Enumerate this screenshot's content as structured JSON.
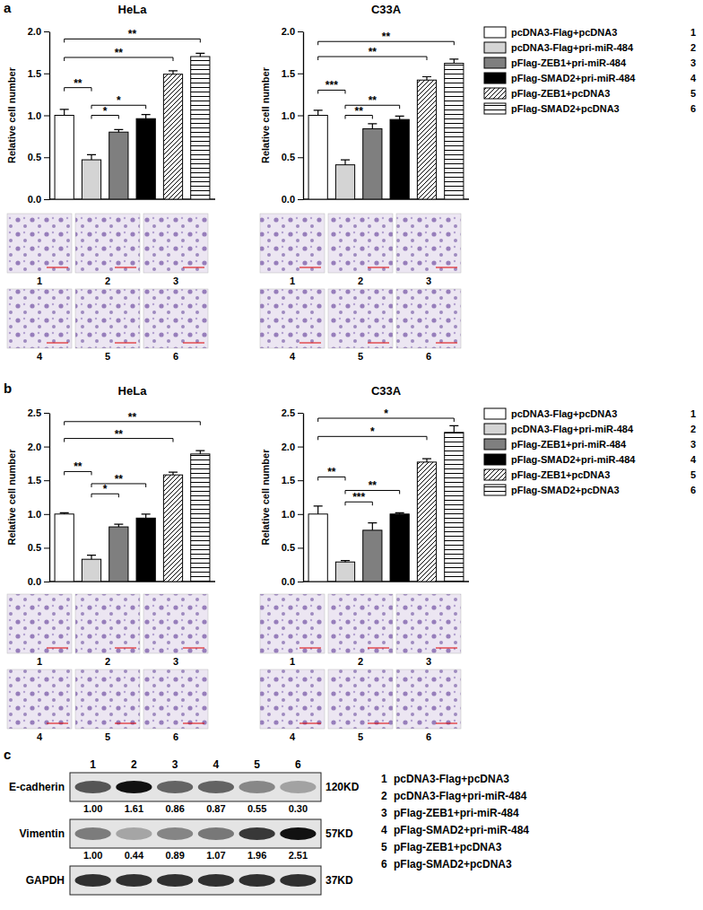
{
  "chart_data": [
    {
      "type": "bar",
      "title": "HeLa",
      "y_label": "Relative cell number",
      "categories": [
        null,
        null,
        null,
        null,
        null,
        null
      ],
      "values": [
        1.0,
        0.47,
        0.8,
        0.96,
        1.49,
        1.7
      ],
      "errors": [
        0.07,
        0.06,
        0.03,
        0.05,
        0.04,
        0.04
      ],
      "colors": [
        "#ffffff",
        "#d4d4d4",
        "#7f7f7f",
        "#000000",
        "#ffffff",
        "#ffffff"
      ],
      "ylim": [
        0,
        2
      ],
      "yticks": [
        {
          "value": 0,
          "label": "0.0"
        },
        {
          "value": 0.5,
          "label": "0.5"
        },
        {
          "value": 1,
          "label": "1.0"
        },
        {
          "value": 1.5,
          "label": "1.5"
        },
        {
          "value": 2,
          "label": "2.0"
        }
      ],
      "annotations": [
        {
          "text": "**",
          "from": 0,
          "to": 1,
          "y": 1.33
        },
        {
          "text": "*",
          "from": 1,
          "to": 2,
          "y": 1.0
        },
        {
          "text": "*",
          "from": 1,
          "to": 3,
          "y": 1.12
        },
        {
          "text": "**",
          "from": 0,
          "to": 4,
          "y": 1.69
        },
        {
          "text": "**",
          "from": 0,
          "to": 5,
          "y": 1.91
        }
      ],
      "image_labels": [
        1,
        2,
        3,
        4,
        5,
        6
      ]
    },
    {
      "type": "bar",
      "title": "C33A",
      "y_label": "Relative cell number",
      "categories": [
        null,
        null,
        null,
        null,
        null,
        null
      ],
      "values": [
        1.0,
        0.41,
        0.84,
        0.95,
        1.42,
        1.62
      ],
      "errors": [
        0.06,
        0.06,
        0.06,
        0.04,
        0.04,
        0.05
      ],
      "colors": [
        "#ffffff",
        "#d4d4d4",
        "#7f7f7f",
        "#000000",
        "#ffffff",
        "#ffffff"
      ],
      "ylim": [
        0,
        2
      ],
      "yticks": [
        {
          "value": 0,
          "label": "0.0"
        },
        {
          "value": 0.5,
          "label": "0.5"
        },
        {
          "value": 1,
          "label": "1.0"
        },
        {
          "value": 1.5,
          "label": "1.5"
        },
        {
          "value": 2,
          "label": "2.0"
        }
      ],
      "annotations": [
        {
          "text": "***",
          "from": 0,
          "to": 1,
          "y": 1.3
        },
        {
          "text": "**",
          "from": 1,
          "to": 2,
          "y": 1.0
        },
        {
          "text": "**",
          "from": 1,
          "to": 3,
          "y": 1.12
        },
        {
          "text": "**",
          "from": 0,
          "to": 4,
          "y": 1.7
        },
        {
          "text": "**",
          "from": 0,
          "to": 5,
          "y": 1.88
        }
      ],
      "image_labels": [
        1,
        2,
        3,
        4,
        5,
        6
      ]
    },
    {
      "type": "bar",
      "title": "HeLa",
      "y_label": "Relative cell number",
      "categories": [
        null,
        null,
        null,
        null,
        null,
        null
      ],
      "values": [
        1.0,
        0.33,
        0.81,
        0.94,
        1.58,
        1.89
      ],
      "errors": [
        0.02,
        0.06,
        0.04,
        0.06,
        0.04,
        0.05
      ],
      "colors": [
        "#ffffff",
        "#d4d4d4",
        "#7f7f7f",
        "#000000",
        "#ffffff",
        "#ffffff"
      ],
      "ylim": [
        0,
        2.5
      ],
      "yticks": [
        {
          "value": 0,
          "label": "0.0"
        },
        {
          "value": 0.5,
          "label": "0.5"
        },
        {
          "value": 1,
          "label": "1.0"
        },
        {
          "value": 1.5,
          "label": "1.5"
        },
        {
          "value": 2,
          "label": "2.0"
        },
        {
          "value": 2.5,
          "label": "2.5"
        }
      ],
      "annotations": [
        {
          "text": "**",
          "from": 0,
          "to": 1,
          "y": 1.63
        },
        {
          "text": "*",
          "from": 1,
          "to": 2,
          "y": 1.3
        },
        {
          "text": "**",
          "from": 1,
          "to": 3,
          "y": 1.45
        },
        {
          "text": "**",
          "from": 0,
          "to": 4,
          "y": 2.12
        },
        {
          "text": "**",
          "from": 0,
          "to": 5,
          "y": 2.37
        }
      ],
      "image_labels": [
        1,
        2,
        3,
        4,
        5,
        6
      ]
    },
    {
      "type": "bar",
      "title": "C33A",
      "y_label": "Relative cell number",
      "categories": [
        null,
        null,
        null,
        null,
        null,
        null
      ],
      "values": [
        1.0,
        0.29,
        0.76,
        1.0,
        1.77,
        2.21
      ],
      "errors": [
        0.12,
        0.02,
        0.11,
        0.02,
        0.05,
        0.1
      ],
      "colors": [
        "#ffffff",
        "#d4d4d4",
        "#7f7f7f",
        "#000000",
        "#ffffff",
        "#ffffff"
      ],
      "ylim": [
        0,
        2.5
      ],
      "yticks": [
        {
          "value": 0,
          "label": "0.0"
        },
        {
          "value": 0.5,
          "label": "0.5"
        },
        {
          "value": 1,
          "label": "1.0"
        },
        {
          "value": 1.5,
          "label": "1.5"
        },
        {
          "value": 2,
          "label": "2.0"
        },
        {
          "value": 2.5,
          "label": "2.5"
        }
      ],
      "annotations": [
        {
          "text": "**",
          "from": 0,
          "to": 1,
          "y": 1.55
        },
        {
          "text": "***",
          "from": 1,
          "to": 2,
          "y": 1.18
        },
        {
          "text": "**",
          "from": 1,
          "to": 3,
          "y": 1.35
        },
        {
          "text": "*",
          "from": 0,
          "to": 4,
          "y": 2.15
        },
        {
          "text": "*",
          "from": 0,
          "to": 5,
          "y": 2.42
        }
      ],
      "image_labels": [
        1,
        2,
        3,
        4,
        5,
        6
      ]
    }
  ],
  "figure": {
    "panel_labels": [
      "a",
      "b",
      "c"
    ],
    "legends": [
      {
        "items": [
          {
            "label": "pcDNA3-Flag+pcDNA3",
            "number": 1
          },
          {
            "label": "pcDNA3-Flag+pri-miR-484",
            "number": 2
          },
          {
            "label": "pFlag-ZEB1+pri-miR-484",
            "number": 3
          },
          {
            "label": "pFlag-SMAD2+pri-miR-484",
            "number": 4
          },
          {
            "label": "pFlag-ZEB1+pcDNA3",
            "number": 5
          },
          {
            "label": "pFlag-SMAD2+pcDNA3",
            "number": 6
          }
        ]
      },
      {
        "items": [
          {
            "label": "pcDNA3-Flag+pcDNA3",
            "number": 1
          },
          {
            "label": "pcDNA3-Flag+pri-miR-484",
            "number": 2
          },
          {
            "label": "pFlag-ZEB1+pri-miR-484",
            "number": 3
          },
          {
            "label": "pFlag-SMAD2+pri-miR-484",
            "number": 4
          },
          {
            "label": "pFlag-ZEB1+pcDNA3",
            "number": 5
          },
          {
            "label": "pFlag-SMAD2+pcDNA3",
            "number": 6
          }
        ]
      }
    ]
  },
  "blot": {
    "lanes": [
      1,
      2,
      3,
      4,
      5,
      6
    ],
    "rows": [
      {
        "name": "E-cadherin",
        "size": "120KD",
        "quant": [
          1.0,
          1.61,
          0.86,
          0.87,
          0.55,
          0.3
        ],
        "quant_labels": [
          "1.00",
          "1.61",
          "0.86",
          "0.87",
          "0.55",
          "0.30"
        ]
      },
      {
        "name": "Vimentin",
        "size": "57KD",
        "quant": [
          1.0,
          0.44,
          0.89,
          1.07,
          1.96,
          2.51
        ],
        "quant_labels": [
          "1.00",
          "0.44",
          "0.89",
          "1.07",
          "1.96",
          "2.51"
        ]
      },
      {
        "name": "GAPDH",
        "size": "37KD"
      }
    ],
    "legend": [
      {
        "number": 1,
        "label": "pcDNA3-Flag+pcDNA3"
      },
      {
        "number": 2,
        "label": "pcDNA3-Flag+pri-miR-484"
      },
      {
        "number": 3,
        "label": "pFlag-ZEB1+pri-miR-484"
      },
      {
        "number": 4,
        "label": "pFlag-SMAD2+pri-miR-484"
      },
      {
        "number": 5,
        "label": "pFlag-ZEB1+pcDNA3"
      },
      {
        "number": 6,
        "label": "pFlag-SMAD2+pcDNA3"
      }
    ]
  }
}
